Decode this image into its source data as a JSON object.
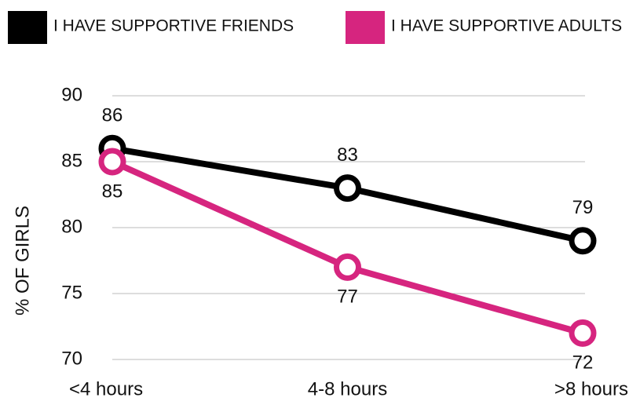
{
  "chart_data": {
    "type": "line",
    "categories": [
      "<4 hours",
      "4-8 hours",
      ">8 hours"
    ],
    "series": [
      {
        "name": "I HAVE SUPPORTIVE FRIENDS",
        "color": "#000000",
        "values": [
          86,
          83,
          79
        ]
      },
      {
        "name": "I HAVE SUPPORTIVE ADULTS",
        "color": "#d6257f",
        "values": [
          85,
          77,
          72
        ]
      }
    ],
    "y_label": "% OF GIRLS",
    "ylim": [
      70,
      90
    ],
    "yticks": [
      70,
      75,
      80,
      85,
      90
    ],
    "grid": true
  }
}
